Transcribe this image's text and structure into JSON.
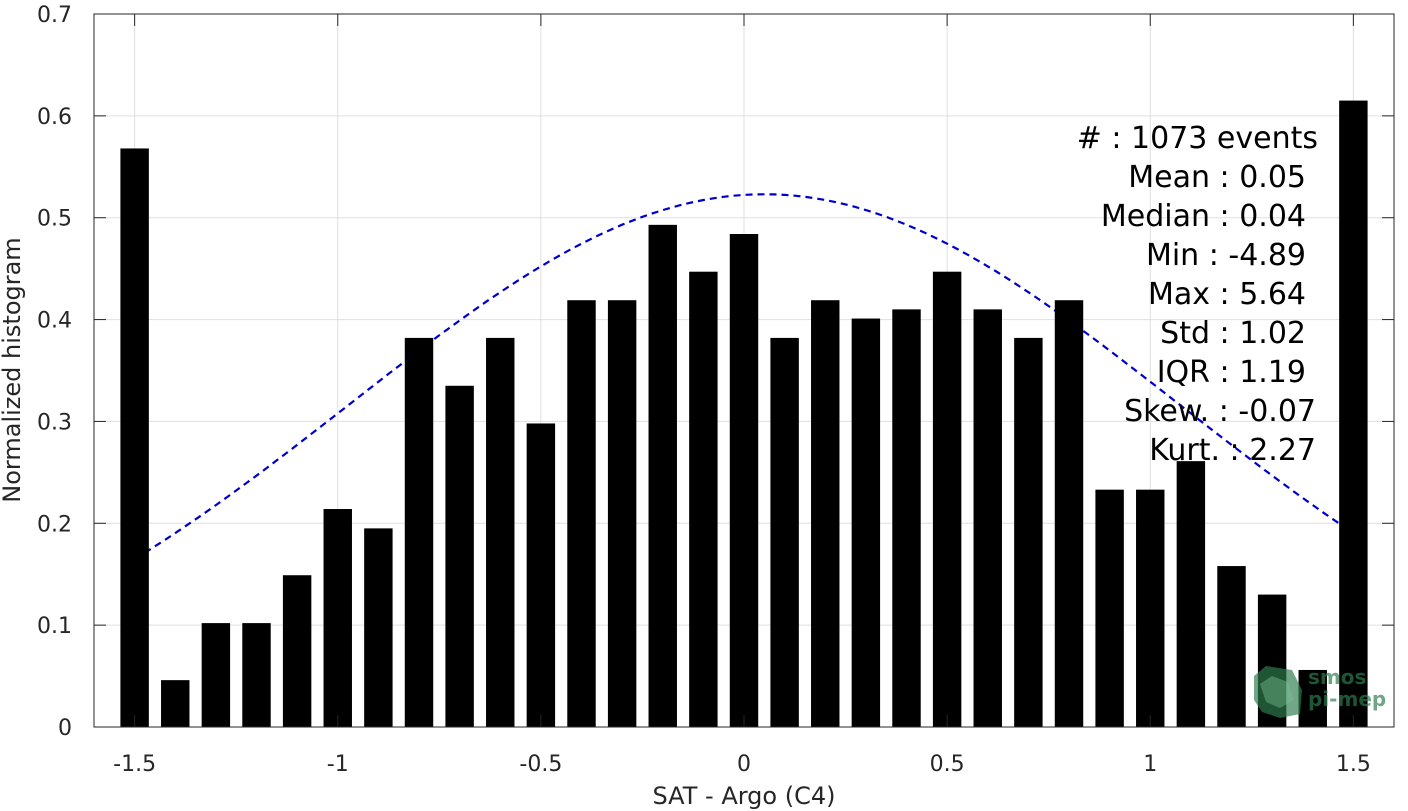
{
  "chart_data": {
    "type": "bar",
    "xlabel": "SAT - Argo (C4)",
    "ylabel": "Normalized histogram",
    "xlim": [
      -1.6,
      1.6
    ],
    "ylim": [
      0,
      0.7
    ],
    "xticks": [
      "-1.5",
      "-1",
      "-0.5",
      "0",
      "0.5",
      "1",
      "1.5"
    ],
    "yticks": [
      "0",
      "0.1",
      "0.2",
      "0.3",
      "0.4",
      "0.5",
      "0.6",
      "0.7"
    ],
    "grid": true,
    "bar_color": "#000000",
    "bar_width": 0.07,
    "x": [
      -1.5,
      -1.4,
      -1.3,
      -1.2,
      -1.1,
      -1.0,
      -0.9,
      -0.8,
      -0.7,
      -0.6,
      -0.5,
      -0.4,
      -0.3,
      -0.2,
      -0.1,
      0.0,
      0.1,
      0.2,
      0.3,
      0.4,
      0.5,
      0.6,
      0.7,
      0.8,
      0.9,
      1.0,
      1.1,
      1.2,
      1.3,
      1.4,
      1.5
    ],
    "values": [
      0.568,
      0.046,
      0.102,
      0.102,
      0.149,
      0.214,
      0.195,
      0.382,
      0.335,
      0.382,
      0.298,
      0.419,
      0.419,
      0.493,
      0.447,
      0.484,
      0.382,
      0.419,
      0.401,
      0.41,
      0.447,
      0.41,
      0.382,
      0.419,
      0.233,
      0.233,
      0.261,
      0.158,
      0.13,
      0.056,
      0.615
    ],
    "fit_curve": {
      "style": "dashed",
      "color": "#0000cc",
      "mean": 0.05,
      "std": 1.02,
      "peak": 0.523,
      "x_range": [
        -1.5,
        1.5
      ]
    },
    "annotations": [
      "#  : 1073 events",
      "Mean : 0.05",
      "Median : 0.04",
      "Min : -4.89",
      "Max : 5.64",
      "Std : 1.02",
      "IQR : 1.19",
      "Skew. : -0.07",
      "Kurt. : 2.27"
    ]
  },
  "watermark": {
    "text_line1": "smos",
    "text_line2": "pi-mep",
    "color": "#2e7d4f"
  }
}
